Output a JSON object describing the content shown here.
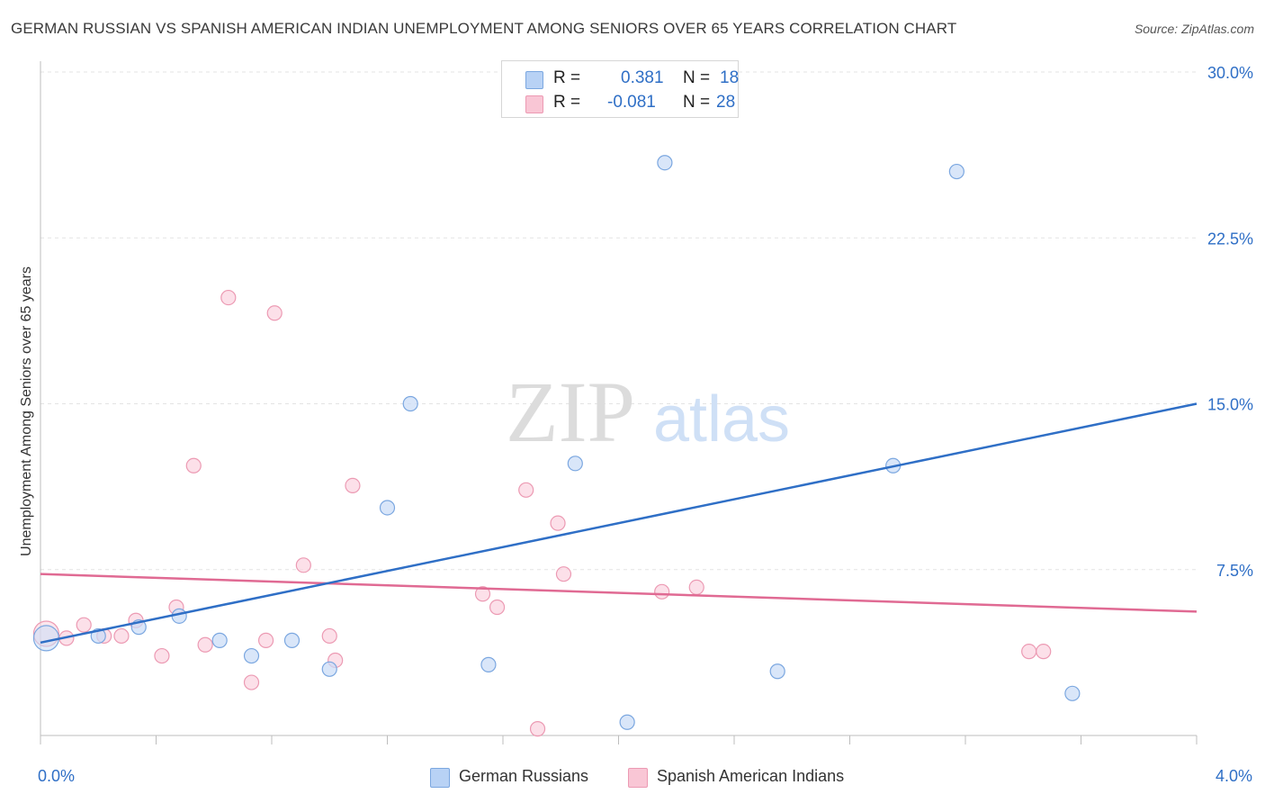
{
  "title": "GERMAN RUSSIAN VS SPANISH AMERICAN INDIAN UNEMPLOYMENT AMONG SENIORS OVER 65 YEARS CORRELATION CHART",
  "source": "Source: ZipAtlas.com",
  "watermark": {
    "zip": "ZIP",
    "atlas": "atlas"
  },
  "legend": {
    "rows": [
      {
        "r_label": "R =",
        "r_value": "0.381",
        "n_label": "N =",
        "n_value": "18",
        "color": "#b8d2f5",
        "border": "#7ba7e0"
      },
      {
        "r_label": "R =",
        "r_value": "-0.081",
        "n_label": "N =",
        "n_value": "28",
        "color": "#f9c6d5",
        "border": "#ec9ab3"
      }
    ]
  },
  "x_axis": {
    "min_label": "0.0%",
    "max_label": "4.0%"
  },
  "colors": {
    "blue_fill": "#c9dcf6",
    "blue_stroke": "#7ba7e0",
    "blue_line": "#2f6fc6",
    "pink_fill": "#fbd3df",
    "pink_stroke": "#ec9ab3",
    "pink_line": "#e06a93",
    "grid": "#e3e3e3",
    "tick_label": "#2f6fc6"
  },
  "chart_data": {
    "type": "scatter",
    "xlabel": "",
    "ylabel": "Unemployment Among Seniors over 65 years",
    "xlim": [
      0,
      4.0
    ],
    "ylim": [
      0,
      30.0
    ],
    "y_ticks": [
      {
        "value": 7.5,
        "label": "7.5%"
      },
      {
        "value": 15.0,
        "label": "15.0%"
      },
      {
        "value": 22.5,
        "label": "22.5%"
      },
      {
        "value": 30.0,
        "label": "30.0%"
      }
    ],
    "x_ticks": [
      0,
      0.4,
      0.8,
      1.2,
      1.6,
      2.0,
      2.4,
      2.8,
      3.2,
      3.6,
      4.0
    ],
    "grid": "horizontal",
    "series": [
      {
        "name": "German Russians",
        "points": [
          {
            "x": 0.02,
            "y": 4.4,
            "big": true
          },
          {
            "x": 0.2,
            "y": 4.5
          },
          {
            "x": 0.34,
            "y": 4.9
          },
          {
            "x": 0.48,
            "y": 5.4
          },
          {
            "x": 0.62,
            "y": 4.3
          },
          {
            "x": 0.73,
            "y": 3.6
          },
          {
            "x": 0.87,
            "y": 4.3
          },
          {
            "x": 1.0,
            "y": 3.0
          },
          {
            "x": 1.2,
            "y": 10.3
          },
          {
            "x": 1.28,
            "y": 15.0
          },
          {
            "x": 1.55,
            "y": 3.2
          },
          {
            "x": 1.85,
            "y": 12.3
          },
          {
            "x": 2.03,
            "y": 0.6
          },
          {
            "x": 2.16,
            "y": 25.9
          },
          {
            "x": 2.55,
            "y": 2.9
          },
          {
            "x": 2.95,
            "y": 12.2
          },
          {
            "x": 3.17,
            "y": 25.5
          },
          {
            "x": 3.57,
            "y": 1.9
          }
        ],
        "trend": {
          "x0": 0.0,
          "y0": 4.2,
          "x1": 4.0,
          "y1": 15.0
        }
      },
      {
        "name": "Spanish American Indians",
        "points": [
          {
            "x": 0.02,
            "y": 4.6,
            "big": true
          },
          {
            "x": 0.09,
            "y": 4.4
          },
          {
            "x": 0.15,
            "y": 5.0
          },
          {
            "x": 0.22,
            "y": 4.5
          },
          {
            "x": 0.28,
            "y": 4.5
          },
          {
            "x": 0.33,
            "y": 5.2
          },
          {
            "x": 0.42,
            "y": 3.6
          },
          {
            "x": 0.47,
            "y": 5.8
          },
          {
            "x": 0.57,
            "y": 4.1
          },
          {
            "x": 0.53,
            "y": 12.2
          },
          {
            "x": 0.65,
            "y": 19.8
          },
          {
            "x": 0.73,
            "y": 2.4
          },
          {
            "x": 0.78,
            "y": 4.3
          },
          {
            "x": 0.81,
            "y": 19.1
          },
          {
            "x": 0.91,
            "y": 7.7
          },
          {
            "x": 1.0,
            "y": 4.5
          },
          {
            "x": 1.02,
            "y": 3.4
          },
          {
            "x": 1.08,
            "y": 11.3
          },
          {
            "x": 1.53,
            "y": 6.4
          },
          {
            "x": 1.58,
            "y": 5.8
          },
          {
            "x": 1.68,
            "y": 11.1
          },
          {
            "x": 1.72,
            "y": 0.3
          },
          {
            "x": 1.79,
            "y": 9.6
          },
          {
            "x": 1.81,
            "y": 7.3
          },
          {
            "x": 2.15,
            "y": 6.5
          },
          {
            "x": 2.27,
            "y": 6.7
          },
          {
            "x": 3.42,
            "y": 3.8
          },
          {
            "x": 3.47,
            "y": 3.8
          }
        ],
        "trend": {
          "x0": 0.0,
          "y0": 7.3,
          "x1": 4.0,
          "y1": 5.6
        }
      }
    ]
  }
}
